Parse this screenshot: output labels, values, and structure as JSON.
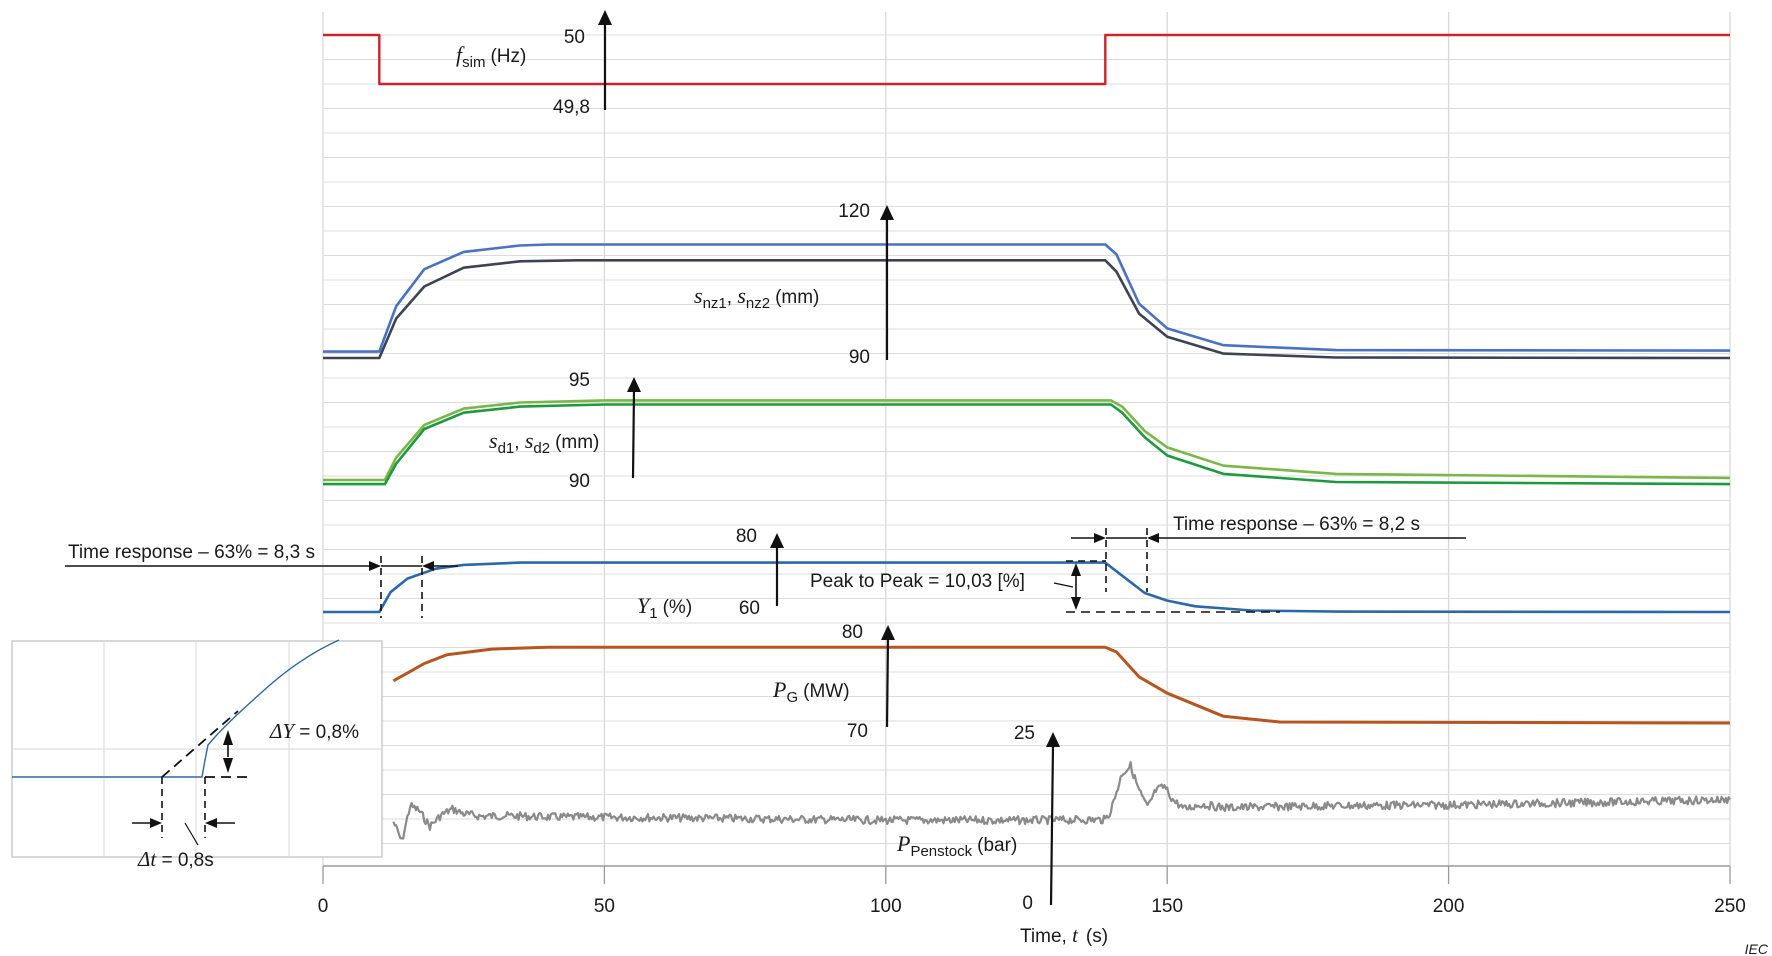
{
  "chart_data": {
    "type": "line",
    "title": "",
    "x_axis": {
      "label_prefix": "Time, ",
      "label_var": "t",
      "label_unit": "(s)",
      "range": [
        0,
        250
      ],
      "ticks": [
        "0",
        "50",
        "100",
        "150",
        "200",
        "250"
      ]
    },
    "watermark": "IEC",
    "traces": [
      {
        "id": "fsim",
        "label_var": "f",
        "label_sub": "sim",
        "label_unit": "(Hz)",
        "color": "#d0222a",
        "scale_top": "50",
        "scale_bottom": "49,8",
        "points": [
          [
            0,
            50
          ],
          [
            10,
            50
          ],
          [
            10,
            49.8
          ],
          [
            139,
            49.8
          ],
          [
            139,
            50
          ],
          [
            250,
            50
          ]
        ]
      },
      {
        "id": "snz1",
        "label_var1": "s",
        "label_sub1": "nz1",
        "label_var2": "s",
        "label_sub2": "nz2",
        "label_unit": "(mm)",
        "color": "#4a72c4",
        "scale_top": "120",
        "scale_bottom": "90",
        "points": [
          [
            0,
            91.3
          ],
          [
            10,
            91.3
          ],
          [
            13,
            100.5
          ],
          [
            18,
            108
          ],
          [
            25,
            111.5
          ],
          [
            35,
            112.8
          ],
          [
            40,
            113
          ],
          [
            139,
            113
          ],
          [
            141,
            111
          ],
          [
            145,
            101
          ],
          [
            150,
            96
          ],
          [
            160,
            92.6
          ],
          [
            180,
            91.6
          ],
          [
            250,
            91.5
          ]
        ]
      },
      {
        "id": "snz2",
        "color": "#3c4454",
        "points": [
          [
            0,
            90
          ],
          [
            10,
            90
          ],
          [
            13,
            98
          ],
          [
            18,
            104.5
          ],
          [
            25,
            108.3
          ],
          [
            35,
            109.6
          ],
          [
            45,
            109.8
          ],
          [
            139,
            109.8
          ],
          [
            141,
            107.5
          ],
          [
            145,
            99
          ],
          [
            150,
            94.3
          ],
          [
            160,
            90.9
          ],
          [
            180,
            90.1
          ],
          [
            250,
            90
          ]
        ]
      },
      {
        "id": "sd1",
        "label_var1": "s",
        "label_sub1": "d1",
        "label_var2": "s",
        "label_sub2": "d2",
        "label_unit": "(mm)",
        "color": "#7ab648",
        "scale_top": "95",
        "scale_bottom": "90",
        "points": [
          [
            0,
            90.0
          ],
          [
            11,
            90.0
          ],
          [
            13,
            91.1
          ],
          [
            18,
            92.7
          ],
          [
            25,
            93.5
          ],
          [
            35,
            93.8
          ],
          [
            50,
            93.9
          ],
          [
            140,
            93.9
          ],
          [
            142,
            93.6
          ],
          [
            146,
            92.4
          ],
          [
            150,
            91.6
          ],
          [
            160,
            90.7
          ],
          [
            180,
            90.3
          ],
          [
            250,
            90.1
          ]
        ]
      },
      {
        "id": "sd2",
        "color": "#1e9a3e",
        "points": [
          [
            0,
            89.8
          ],
          [
            11,
            89.8
          ],
          [
            13,
            90.8
          ],
          [
            18,
            92.5
          ],
          [
            25,
            93.3
          ],
          [
            35,
            93.6
          ],
          [
            50,
            93.7
          ],
          [
            140,
            93.7
          ],
          [
            142,
            93.3
          ],
          [
            146,
            92.1
          ],
          [
            150,
            91.2
          ],
          [
            160,
            90.3
          ],
          [
            180,
            89.9
          ],
          [
            250,
            89.8
          ]
        ]
      },
      {
        "id": "y1",
        "label_var": "Y",
        "label_sub": "1",
        "label_unit": "(%)",
        "color": "#2c68a8",
        "scale_top": "80",
        "scale_bottom": "60",
        "points": [
          [
            0,
            60
          ],
          [
            10,
            60
          ],
          [
            12,
            65.2
          ],
          [
            15,
            68.8
          ],
          [
            20,
            71.4
          ],
          [
            25,
            72.4
          ],
          [
            35,
            73
          ],
          [
            50,
            73
          ],
          [
            139,
            73
          ],
          [
            141,
            70.7
          ],
          [
            146,
            65
          ],
          [
            150,
            63
          ],
          [
            155,
            61.5
          ],
          [
            165,
            60.4
          ],
          [
            180,
            60.1
          ],
          [
            250,
            60
          ]
        ]
      },
      {
        "id": "pg",
        "label_var": "P",
        "label_sub": "G",
        "label_unit": "(MW)",
        "color": "#b5551f",
        "scale_top": "80",
        "scale_bottom": "70",
        "points": [
          [
            12.5,
            74.4
          ],
          [
            15,
            75.2
          ],
          [
            18,
            76.2
          ],
          [
            22,
            77.1
          ],
          [
            30,
            77.7
          ],
          [
            40,
            77.9
          ],
          [
            139,
            77.9
          ],
          [
            141,
            77.4
          ],
          [
            145,
            74.8
          ],
          [
            150,
            73.1
          ],
          [
            160,
            70.7
          ],
          [
            170,
            70.1
          ],
          [
            250,
            70
          ]
        ]
      },
      {
        "id": "ppen",
        "label_var": "P",
        "label_sub": "Penstock",
        "label_unit": "(bar)",
        "color": "#8a8a8a",
        "scale_top": "25",
        "scale_bottom": "0",
        "points": [
          [
            12.5,
            11.5
          ],
          [
            14,
            8.5
          ],
          [
            15.5,
            13.9
          ],
          [
            17,
            13.2
          ],
          [
            19,
            10.8
          ],
          [
            21,
            12.5
          ],
          [
            23,
            13.4
          ],
          [
            25,
            12.7
          ],
          [
            28,
            12.3
          ],
          [
            32,
            12.4
          ],
          [
            40,
            12.2
          ],
          [
            60,
            12.1
          ],
          [
            100,
            11.7
          ],
          [
            125,
            11.7
          ],
          [
            139,
            11.8
          ],
          [
            140,
            13.2
          ],
          [
            142,
            18.8
          ],
          [
            143.5,
            19.9
          ],
          [
            145,
            16.2
          ],
          [
            146.5,
            13.6
          ],
          [
            148,
            16.2
          ],
          [
            149.5,
            16.8
          ],
          [
            151,
            14.8
          ],
          [
            153,
            13.4
          ],
          [
            156,
            14.1
          ],
          [
            160,
            13.6
          ],
          [
            180,
            13.9
          ],
          [
            200,
            14.0
          ],
          [
            220,
            14.3
          ],
          [
            250,
            14.8
          ]
        ]
      }
    ],
    "annotations": {
      "left_time_response": "Time response – 63% = 8,3 s",
      "right_time_response": "Time response – 63% = 8,2 s",
      "peak_to_peak": "Peak to Peak = 10,03 [%]"
    },
    "inset": {
      "delta_y_var": "ΔY",
      "delta_y_value": " = 0,8%",
      "delta_t_var": "Δt",
      "delta_t_value": " = 0,8s",
      "color": "#2c68a8"
    }
  }
}
